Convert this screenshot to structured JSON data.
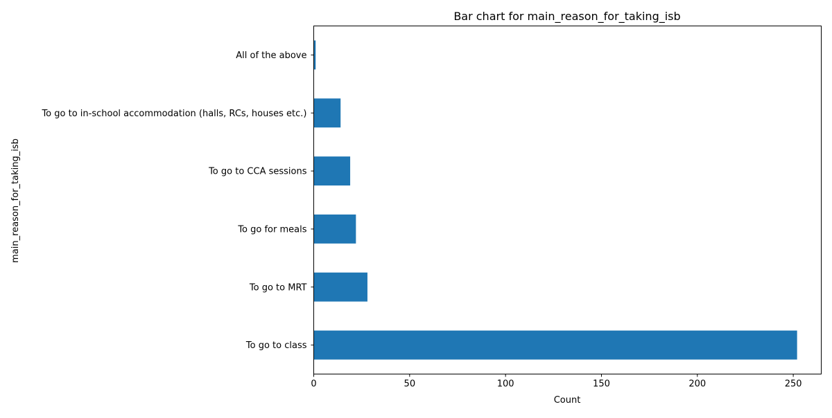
{
  "chart_data": {
    "type": "bar",
    "orientation": "horizontal",
    "title": "Bar chart for main_reason_for_taking_isb",
    "xlabel": "Count",
    "ylabel": "main_reason_for_taking_isb",
    "categories": [
      "To go to class",
      "To go to MRT",
      "To go for meals",
      "To go to CCA sessions",
      "To go to in-school accommodation (halls, RCs, houses etc.)",
      "All of the above"
    ],
    "values": [
      252,
      28,
      22,
      19,
      14,
      1
    ],
    "xlim": [
      0,
      264.6
    ],
    "xticks": [
      0,
      50,
      100,
      150,
      200,
      250
    ],
    "grid": false,
    "bar_color": "#1f77b4"
  }
}
